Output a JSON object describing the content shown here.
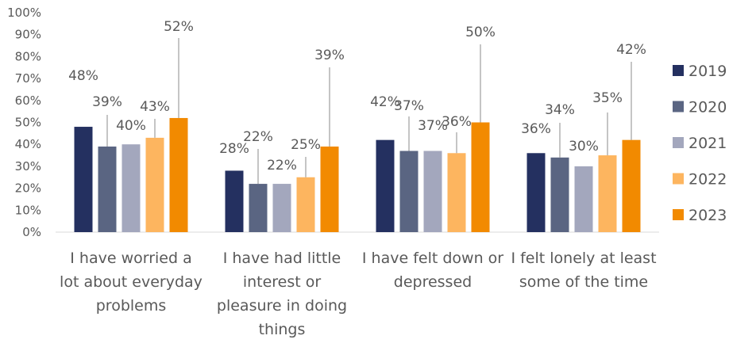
{
  "chart_data": {
    "type": "bar",
    "title": "",
    "xlabel": "",
    "ylabel": "",
    "ylim": [
      0,
      100
    ],
    "yticks": [
      "0%",
      "10%",
      "20%",
      "30%",
      "40%",
      "50%",
      "60%",
      "70%",
      "80%",
      "90%",
      "100%"
    ],
    "categories": [
      [
        "I have worried a",
        "lot about everyday",
        "problems"
      ],
      [
        "I have had little",
        "interest or",
        "pleasure in doing",
        "things"
      ],
      [
        "I have felt down or",
        "depressed"
      ],
      [
        "I felt lonely at least",
        "some of the time"
      ]
    ],
    "series": [
      {
        "name": "2019",
        "color": "#243060",
        "values": [
          48,
          28,
          42,
          36
        ],
        "labels": [
          "48%",
          "28%",
          "42%",
          "36%"
        ]
      },
      {
        "name": "2020",
        "color": "#5a6582",
        "values": [
          39,
          22,
          37,
          34
        ],
        "labels": [
          "39%",
          "22%",
          "37%",
          "34%"
        ]
      },
      {
        "name": "2021",
        "color": "#a3a7bd",
        "values": [
          40,
          22,
          37,
          30
        ],
        "labels": [
          "40%",
          "22%",
          "37%",
          "30%"
        ]
      },
      {
        "name": "2022",
        "color": "#fdb55f",
        "values": [
          43,
          25,
          36,
          35
        ],
        "labels": [
          "43%",
          "25%",
          "36%",
          "35%"
        ]
      },
      {
        "name": "2023",
        "color": "#f28a00",
        "values": [
          52,
          39,
          50,
          42
        ],
        "labels": [
          "52%",
          "39%",
          "50%",
          "42%"
        ]
      }
    ],
    "legend_position": "right",
    "grid": false
  }
}
